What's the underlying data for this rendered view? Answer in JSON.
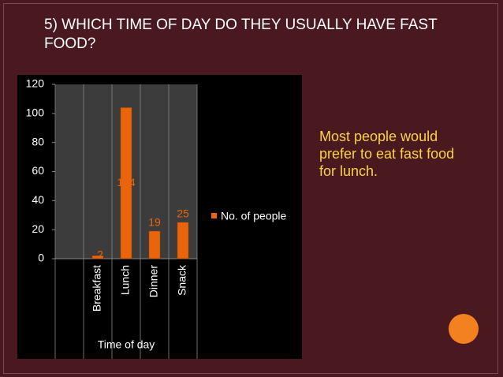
{
  "header": {
    "title": "5) WHICH TIME OF DAY DO THEY USUALLY HAVE FAST FOOD?"
  },
  "note": "Most people would prefer to eat fast food for lunch.",
  "chart_data": {
    "type": "bar",
    "x_label": "Time of day",
    "categories": [
      null,
      "Breakfast",
      "Lunch",
      "Dinner",
      "Snack"
    ],
    "series": [
      {
        "name": "No. of people",
        "color": "#e8650c",
        "values": [
          null,
          2,
          104,
          19,
          25
        ]
      }
    ],
    "ylim": [
      0,
      120
    ],
    "yticks": [
      0,
      20,
      40,
      60,
      80,
      100,
      120
    ],
    "legend": "right",
    "data_labels": true
  }
}
